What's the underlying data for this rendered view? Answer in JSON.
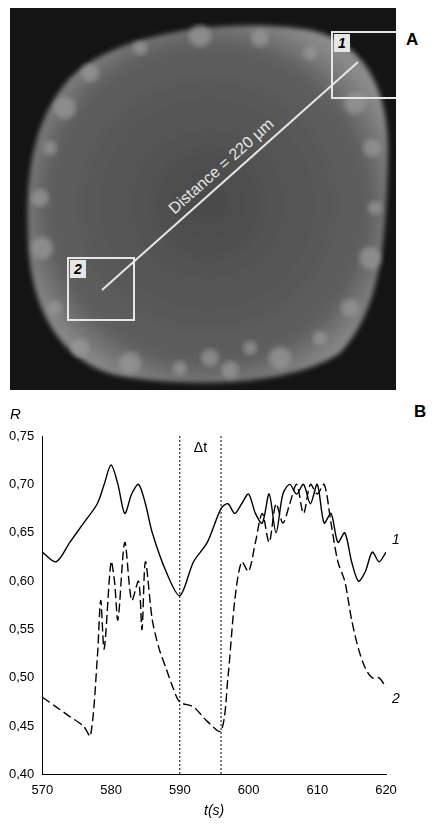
{
  "image_panel": {
    "letter": "A",
    "regions": [
      "1",
      "2"
    ],
    "annotation": "Distance = 220 µm"
  },
  "chart_panel_letter": "B",
  "chart_data": {
    "type": "line",
    "x_label": "t(s)",
    "y_label": "R",
    "xlim": [
      570,
      620
    ],
    "xticks": [
      570,
      580,
      590,
      600,
      610,
      620
    ],
    "ylim": [
      0.4,
      0.75
    ],
    "yticks": [
      {
        "value": 0.4,
        "label": "0,40"
      },
      {
        "value": 0.45,
        "label": "0,45"
      },
      {
        "value": 0.5,
        "label": "0,50"
      },
      {
        "value": 0.55,
        "label": "0,55"
      },
      {
        "value": 0.6,
        "label": "0,60"
      },
      {
        "value": 0.65,
        "label": "0,65"
      },
      {
        "value": 0.7,
        "label": "0,70"
      },
      {
        "value": 0.75,
        "label": "0,75"
      }
    ],
    "grid": false,
    "annotations": [
      {
        "text": "Δt",
        "x": [
          590,
          596
        ]
      }
    ],
    "series": [
      {
        "name": "1",
        "color": "#000000",
        "line_style": "solid",
        "x": [
          570,
          572,
          574,
          576,
          578,
          579,
          580,
          581,
          582,
          583,
          584,
          585,
          586,
          588,
          590,
          592,
          594,
          596,
          597,
          598,
          599,
          600,
          601,
          602,
          603,
          604,
          605,
          606,
          607,
          608,
          609,
          610,
          611,
          612,
          613,
          614,
          615,
          616,
          617,
          618,
          619,
          620
        ],
        "values": [
          0.63,
          0.62,
          0.64,
          0.66,
          0.68,
          0.7,
          0.72,
          0.7,
          0.67,
          0.69,
          0.7,
          0.68,
          0.65,
          0.61,
          0.585,
          0.62,
          0.64,
          0.675,
          0.68,
          0.67,
          0.68,
          0.69,
          0.67,
          0.66,
          0.69,
          0.65,
          0.69,
          0.7,
          0.69,
          0.7,
          0.68,
          0.7,
          0.66,
          0.67,
          0.64,
          0.65,
          0.62,
          0.6,
          0.61,
          0.63,
          0.62,
          0.63
        ]
      },
      {
        "name": "2",
        "color": "#000000",
        "line_style": "dashed",
        "x": [
          570,
          572,
          574,
          576,
          577,
          578,
          578.5,
          579,
          580,
          580.5,
          581,
          582,
          583,
          584,
          584.5,
          585,
          586,
          587,
          588,
          589,
          590,
          592,
          594,
          596,
          597,
          598,
          599,
          600,
          601,
          602,
          603,
          604,
          605,
          606,
          607,
          608,
          609,
          610,
          611,
          612,
          613,
          614,
          615,
          616,
          617,
          618,
          619,
          620
        ],
        "values": [
          0.48,
          0.47,
          0.46,
          0.45,
          0.44,
          0.52,
          0.58,
          0.53,
          0.62,
          0.6,
          0.56,
          0.64,
          0.58,
          0.6,
          0.55,
          0.62,
          0.56,
          0.53,
          0.51,
          0.49,
          0.475,
          0.47,
          0.455,
          0.445,
          0.5,
          0.58,
          0.62,
          0.61,
          0.64,
          0.67,
          0.64,
          0.68,
          0.66,
          0.68,
          0.7,
          0.67,
          0.7,
          0.69,
          0.7,
          0.66,
          0.62,
          0.6,
          0.56,
          0.53,
          0.51,
          0.5,
          0.5,
          0.49
        ]
      }
    ]
  }
}
